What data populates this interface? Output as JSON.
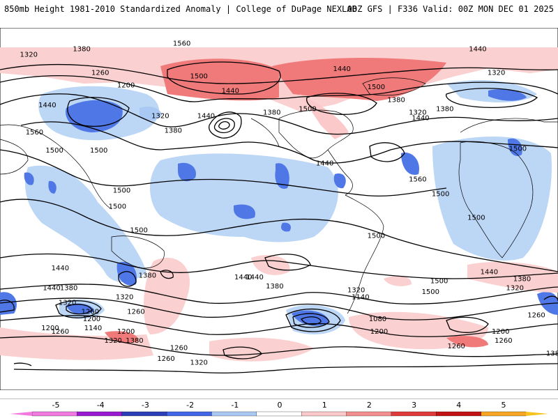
{
  "header": {
    "title": "850mb Height 1981-2010 Standardized Anomaly | College of DuPage NEXLAB",
    "run_info": "00Z GFS | F336 Valid: 00Z MON DEC 01 2025"
  },
  "colors": {
    "land": "#ffffff",
    "coast": "#000000",
    "contour": "#000000"
  },
  "contour_labels": [
    {
      "text": "1320",
      "lon": -175,
      "lat": 72
    },
    {
      "text": "1380",
      "lon": -138,
      "lat": 75
    },
    {
      "text": "1560",
      "lon": -68,
      "lat": 78
    },
    {
      "text": "1260",
      "lon": -125,
      "lat": 62
    },
    {
      "text": "1200",
      "lon": -107,
      "lat": 55
    },
    {
      "text": "1500",
      "lon": -56,
      "lat": 60
    },
    {
      "text": "1440",
      "lon": -34,
      "lat": 52
    },
    {
      "text": "1440",
      "lon": 44,
      "lat": 64
    },
    {
      "text": "1500",
      "lon": 68,
      "lat": 54
    },
    {
      "text": "1380",
      "lon": 82,
      "lat": 47
    },
    {
      "text": "1440",
      "lon": 139,
      "lat": 75
    },
    {
      "text": "1320",
      "lon": 152,
      "lat": 62
    },
    {
      "text": "1440",
      "lon": -162,
      "lat": 44
    },
    {
      "text": "1320",
      "lon": -83,
      "lat": 38
    },
    {
      "text": "1380",
      "lon": -74,
      "lat": 30
    },
    {
      "text": "1440",
      "lon": -51,
      "lat": 38
    },
    {
      "text": "1380",
      "lon": -5,
      "lat": 40
    },
    {
      "text": "1500",
      "lon": 20,
      "lat": 42
    },
    {
      "text": "1320",
      "lon": 97,
      "lat": 40
    },
    {
      "text": "1440",
      "lon": 99,
      "lat": 37
    },
    {
      "text": "1380",
      "lon": 116,
      "lat": 42
    },
    {
      "text": "1560",
      "lon": -171,
      "lat": 29
    },
    {
      "text": "1500",
      "lon": -157,
      "lat": 19
    },
    {
      "text": "1500",
      "lon": -126,
      "lat": 19
    },
    {
      "text": "1440",
      "lon": 32,
      "lat": 12
    },
    {
      "text": "1560",
      "lon": 97,
      "lat": 3
    },
    {
      "text": "1500",
      "lon": 167,
      "lat": 20
    },
    {
      "text": "1500",
      "lon": -113,
      "lat": -12
    },
    {
      "text": "1500",
      "lon": -98,
      "lat": -25
    },
    {
      "text": "1500",
      "lon": -110,
      "lat": -3
    },
    {
      "text": "1500",
      "lon": 113,
      "lat": -5
    },
    {
      "text": "1500",
      "lon": 138,
      "lat": -18
    },
    {
      "text": "1500",
      "lon": 68,
      "lat": -28
    },
    {
      "text": "1500",
      "lon": 106,
      "lat": -59
    },
    {
      "text": "1440",
      "lon": -153,
      "lat": -46
    },
    {
      "text": "1440",
      "lon": -25,
      "lat": -51
    },
    {
      "text": "1380",
      "lon": -92,
      "lat": -50
    },
    {
      "text": "1320",
      "lon": -108,
      "lat": -62
    },
    {
      "text": "1260",
      "lon": -100,
      "lat": -70
    },
    {
      "text": "1200",
      "lon": -107,
      "lat": -81
    },
    {
      "text": "1500",
      "lon": 112,
      "lat": -53
    },
    {
      "text": "1440",
      "lon": -17,
      "lat": -51
    },
    {
      "text": "1380",
      "lon": -3,
      "lat": -56
    },
    {
      "text": "1320",
      "lon": 54,
      "lat": -58
    },
    {
      "text": "1140",
      "lon": 57,
      "lat": -62
    },
    {
      "text": "1080",
      "lon": 69,
      "lat": -74
    },
    {
      "text": "1200",
      "lon": 70,
      "lat": -81
    },
    {
      "text": "1440",
      "lon": -159,
      "lat": -57
    },
    {
      "text": "1380",
      "lon": -147,
      "lat": -57
    },
    {
      "text": "1320",
      "lon": -148,
      "lat": -65
    },
    {
      "text": "1260",
      "lon": -132,
      "lat": -70
    },
    {
      "text": "1200",
      "lon": -131,
      "lat": -74
    },
    {
      "text": "1140",
      "lon": -130,
      "lat": -79
    },
    {
      "text": "1200",
      "lon": -160,
      "lat": -79
    },
    {
      "text": "1260",
      "lon": -153,
      "lat": -81
    },
    {
      "text": "1320",
      "lon": -116,
      "lat": -86
    },
    {
      "text": "1380",
      "lon": -101,
      "lat": -86
    },
    {
      "text": "1260",
      "lon": -70,
      "lat": -90
    },
    {
      "text": "1260",
      "lon": -79,
      "lat": -96
    },
    {
      "text": "1320",
      "lon": -56,
      "lat": -98
    },
    {
      "text": "1260",
      "lon": 124,
      "lat": -89
    },
    {
      "text": "1260",
      "lon": 180,
      "lat": -72
    },
    {
      "text": "1320",
      "lon": 165,
      "lat": -57
    },
    {
      "text": "1380",
      "lon": 170,
      "lat": -52
    },
    {
      "text": "1440",
      "lon": 147,
      "lat": -48
    },
    {
      "text": "1200",
      "lon": 155,
      "lat": -81
    },
    {
      "text": "1260",
      "lon": 157,
      "lat": -86
    },
    {
      "text": "1380",
      "lon": 193,
      "lat": -93
    },
    {
      "text": "1320",
      "lon": 218,
      "lat": -101
    }
  ],
  "colorbar": {
    "ticks": [
      "-5",
      "-4",
      "-3",
      "-2",
      "-1",
      "0",
      "1",
      "2",
      "3",
      "4",
      "5"
    ],
    "colors": [
      "#f07ae0",
      "#9a1ad2",
      "#2b3fb8",
      "#4166e6",
      "#a9c9f4",
      "#ffffff",
      "#fbc9c9",
      "#f28e8e",
      "#e03a3a",
      "#c21414",
      "#f6a623"
    ],
    "left_arrow_color": "#f07ae0",
    "right_arrow_color": "#f6c21b"
  }
}
